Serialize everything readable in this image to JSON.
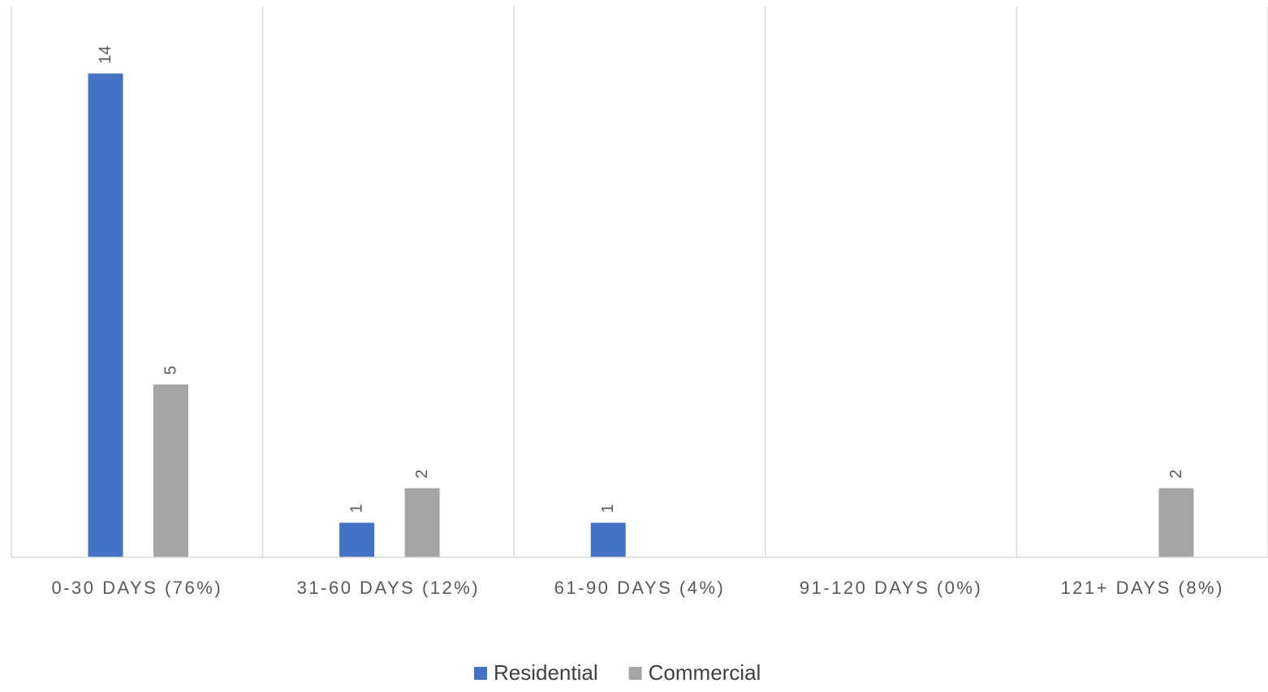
{
  "chart_data": {
    "type": "bar",
    "categories": [
      "0-30 DAYS (76%)",
      "31-60 DAYS (12%)",
      "61-90 DAYS (4%)",
      "91-120 DAYS (0%)",
      "121+ DAYS (8%)"
    ],
    "series": [
      {
        "name": "Residential",
        "color": "#4472c4",
        "values": [
          14,
          1,
          1,
          0,
          0
        ]
      },
      {
        "name": "Commercial",
        "color": "#a5a5a5",
        "values": [
          5,
          2,
          0,
          0,
          2
        ]
      }
    ],
    "title": "",
    "xlabel": "",
    "ylabel": "",
    "ylim": [
      0,
      14
    ],
    "grid": "vertical category separators",
    "legend_position": "bottom-center",
    "data_labels_shown": "non-zero bars, rotated"
  }
}
